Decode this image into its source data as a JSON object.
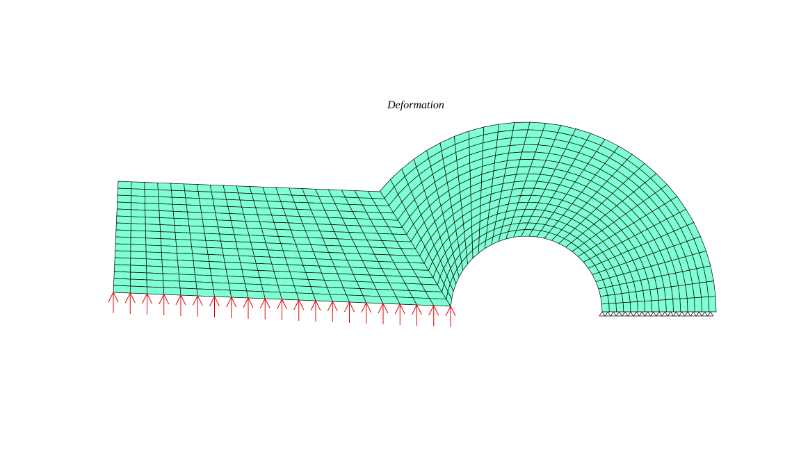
{
  "title": "Deformation"
}
